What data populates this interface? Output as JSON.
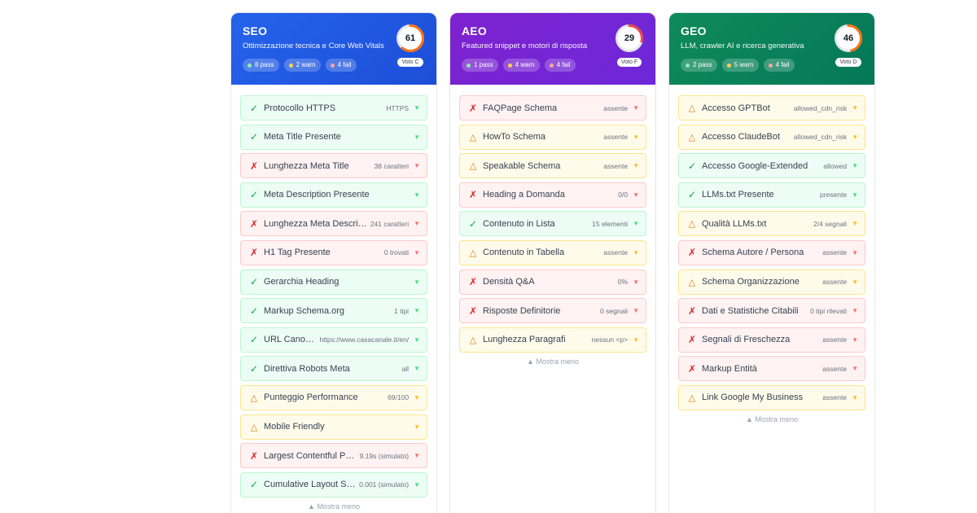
{
  "columns": {
    "seo": {
      "title": "SEO",
      "subtitle": "Ottimizzazione tecnica e Core Web Vitals",
      "badges": {
        "pass": "8 pass",
        "warn": "2 warn",
        "fail": "4 fail"
      },
      "score": "61",
      "score_percent": 61,
      "ring_color": "#f97316",
      "grade": "Voto C",
      "items": [
        {
          "status": "pass",
          "label": "Protocollo HTTPS",
          "value": "HTTPS"
        },
        {
          "status": "pass",
          "label": "Meta Title Presente",
          "value": ""
        },
        {
          "status": "fail",
          "label": "Lunghezza Meta Title",
          "value": "38 caratteri"
        },
        {
          "status": "pass",
          "label": "Meta Description Presente",
          "value": ""
        },
        {
          "status": "fail",
          "label": "Lunghezza Meta Descripti…",
          "value": "241 caratteri"
        },
        {
          "status": "fail",
          "label": "H1 Tag Presente",
          "value": "0 trovati"
        },
        {
          "status": "pass",
          "label": "Gerarchia Heading",
          "value": ""
        },
        {
          "status": "pass",
          "label": "Markup Schema.org",
          "value": "1 tipi"
        },
        {
          "status": "pass",
          "label": "URL Canon…",
          "value": "https://www.casacanale.it/en/"
        },
        {
          "status": "pass",
          "label": "Direttiva Robots Meta",
          "value": "all"
        },
        {
          "status": "warn",
          "label": "Punteggio Performance",
          "value": "69/100"
        },
        {
          "status": "warn",
          "label": "Mobile Friendly",
          "value": ""
        },
        {
          "status": "fail",
          "label": "Largest Contentful Pai…",
          "value": "9.19s (simulato)"
        },
        {
          "status": "pass",
          "label": "Cumulative Layout Shi…",
          "value": "0.001 (simulato)"
        }
      ],
      "show_less": "▲ Mostra meno"
    },
    "aeo": {
      "title": "AEO",
      "subtitle": "Featured snippet e motori di risposta",
      "badges": {
        "pass": "1 pass",
        "warn": "4 warn",
        "fail": "4 fail"
      },
      "score": "29",
      "score_percent": 29,
      "ring_color": "#ef4444",
      "grade": "Voto F",
      "items": [
        {
          "status": "fail",
          "label": "FAQPage Schema",
          "value": "assente"
        },
        {
          "status": "warn",
          "label": "HowTo Schema",
          "value": "assente"
        },
        {
          "status": "warn",
          "label": "Speakable Schema",
          "value": "assente"
        },
        {
          "status": "fail",
          "label": "Heading a Domanda",
          "value": "0/0"
        },
        {
          "status": "pass",
          "label": "Contenuto in Lista",
          "value": "15 elementi"
        },
        {
          "status": "warn",
          "label": "Contenuto in Tabella",
          "value": "assente"
        },
        {
          "status": "fail",
          "label": "Densità Q&A",
          "value": "0%"
        },
        {
          "status": "fail",
          "label": "Risposte Definitorie",
          "value": "0 segnali"
        },
        {
          "status": "warn",
          "label": "Lunghezza Paragrafi",
          "value": "nessun <p>"
        }
      ],
      "show_less": "▲ Mostra meno"
    },
    "geo": {
      "title": "GEO",
      "subtitle": "LLM, crawler AI e ricerca generativa",
      "badges": {
        "pass": "2 pass",
        "warn": "5 warn",
        "fail": "4 fail"
      },
      "score": "46",
      "score_percent": 46,
      "ring_color": "#f97316",
      "grade": "Voto D",
      "items": [
        {
          "status": "warn",
          "label": "Accesso GPTBot",
          "value": "allowed_cdn_risk"
        },
        {
          "status": "warn",
          "label": "Accesso ClaudeBot",
          "value": "allowed_cdn_risk"
        },
        {
          "status": "pass",
          "label": "Accesso Google-Extended",
          "value": "allowed"
        },
        {
          "status": "pass",
          "label": "LLMs.txt Presente",
          "value": "presente"
        },
        {
          "status": "warn",
          "label": "Qualità LLMs.txt",
          "value": "2/4 segnali"
        },
        {
          "status": "fail",
          "label": "Schema Autore / Persona",
          "value": "assente"
        },
        {
          "status": "warn",
          "label": "Schema Organizzazione",
          "value": "assente"
        },
        {
          "status": "fail",
          "label": "Dati e Statistiche Citabili",
          "value": "0 tipi rilevati"
        },
        {
          "status": "fail",
          "label": "Segnali di Freschezza",
          "value": "assente"
        },
        {
          "status": "fail",
          "label": "Markup Entità",
          "value": "assente"
        },
        {
          "status": "warn",
          "label": "Link Google My Business",
          "value": "assente"
        }
      ],
      "show_less": "▲ Mostra meno"
    }
  },
  "icons": {
    "pass": "✓",
    "warn": "△",
    "fail": "✗",
    "chevron": "▼"
  }
}
